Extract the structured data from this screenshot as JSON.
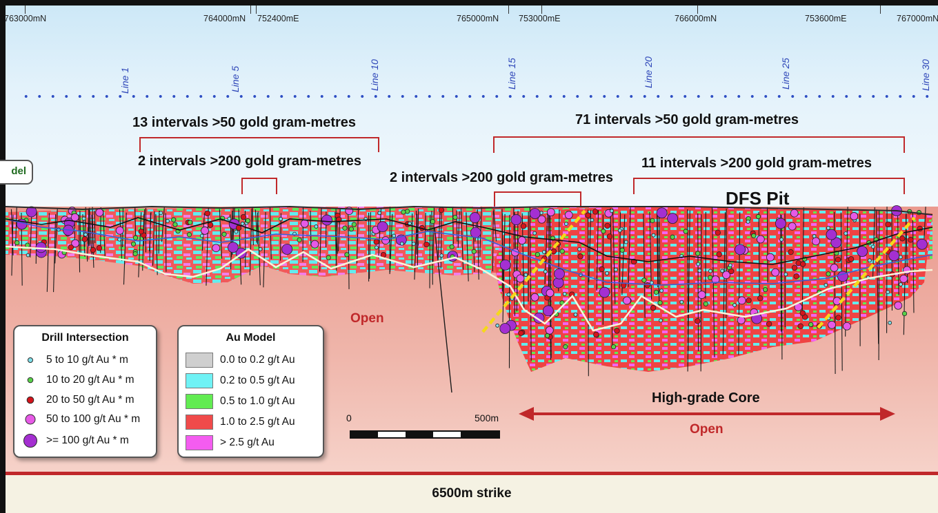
{
  "coords": [
    "763000mN",
    "764000mN",
    "752400mE",
    "765000mN",
    "753000mE",
    "766000mN",
    "753600mE",
    "767000mN"
  ],
  "section_lines": [
    "Line 1",
    "Line 5",
    "Line 10",
    "Line 15",
    "Line 20",
    "Line 25",
    "Line 30"
  ],
  "annotations": {
    "left_50": "13 intervals >50 gold gram-metres",
    "left_200": "2 intervals >200 gold gram-metres",
    "mid_200": "2 intervals >200 gold gram-metres",
    "right_50": "71 intervals >50 gold gram-metres",
    "right_200": "11 intervals >200 gold gram-metres"
  },
  "model_tab": "del",
  "pit_label": "DFS Pit",
  "open_labels": [
    "Open",
    "Open"
  ],
  "core_label": "High-grade Core",
  "scale": {
    "start": "0",
    "end": "500m"
  },
  "footer": "6500m strike",
  "legend_drill": {
    "title": "Drill Intersection",
    "items": [
      {
        "label": "5 to 10 g/t Au * m",
        "color": "#7fe0ea",
        "size": "small"
      },
      {
        "label": "10 to 20 g/t Au * m",
        "color": "#59d14a",
        "size": "small"
      },
      {
        "label": "20 to 50 g/t Au * m",
        "color": "#d4141b",
        "size": "medium"
      },
      {
        "label": "50 to 100 g/t Au * m",
        "color": "#e65ae6",
        "size": "large"
      },
      {
        "label": ">= 100 g/t Au * m",
        "color": "#a42fd1",
        "size": "xlarge"
      }
    ]
  },
  "legend_model": {
    "title": "Au Model",
    "items": [
      {
        "label": "0.0 to 0.2 g/t Au",
        "color": "#cfcfcf"
      },
      {
        "label": "0.2 to 0.5 g/t Au",
        "color": "#6ff2f5"
      },
      {
        "label": "0.5 to 1.0 g/t Au",
        "color": "#62ec52"
      },
      {
        "label": "1.0 to 2.5 g/t Au",
        "color": "#f04a4a"
      },
      {
        "label": "> 2.5 g/t Au",
        "color": "#f45cf0"
      }
    ]
  }
}
